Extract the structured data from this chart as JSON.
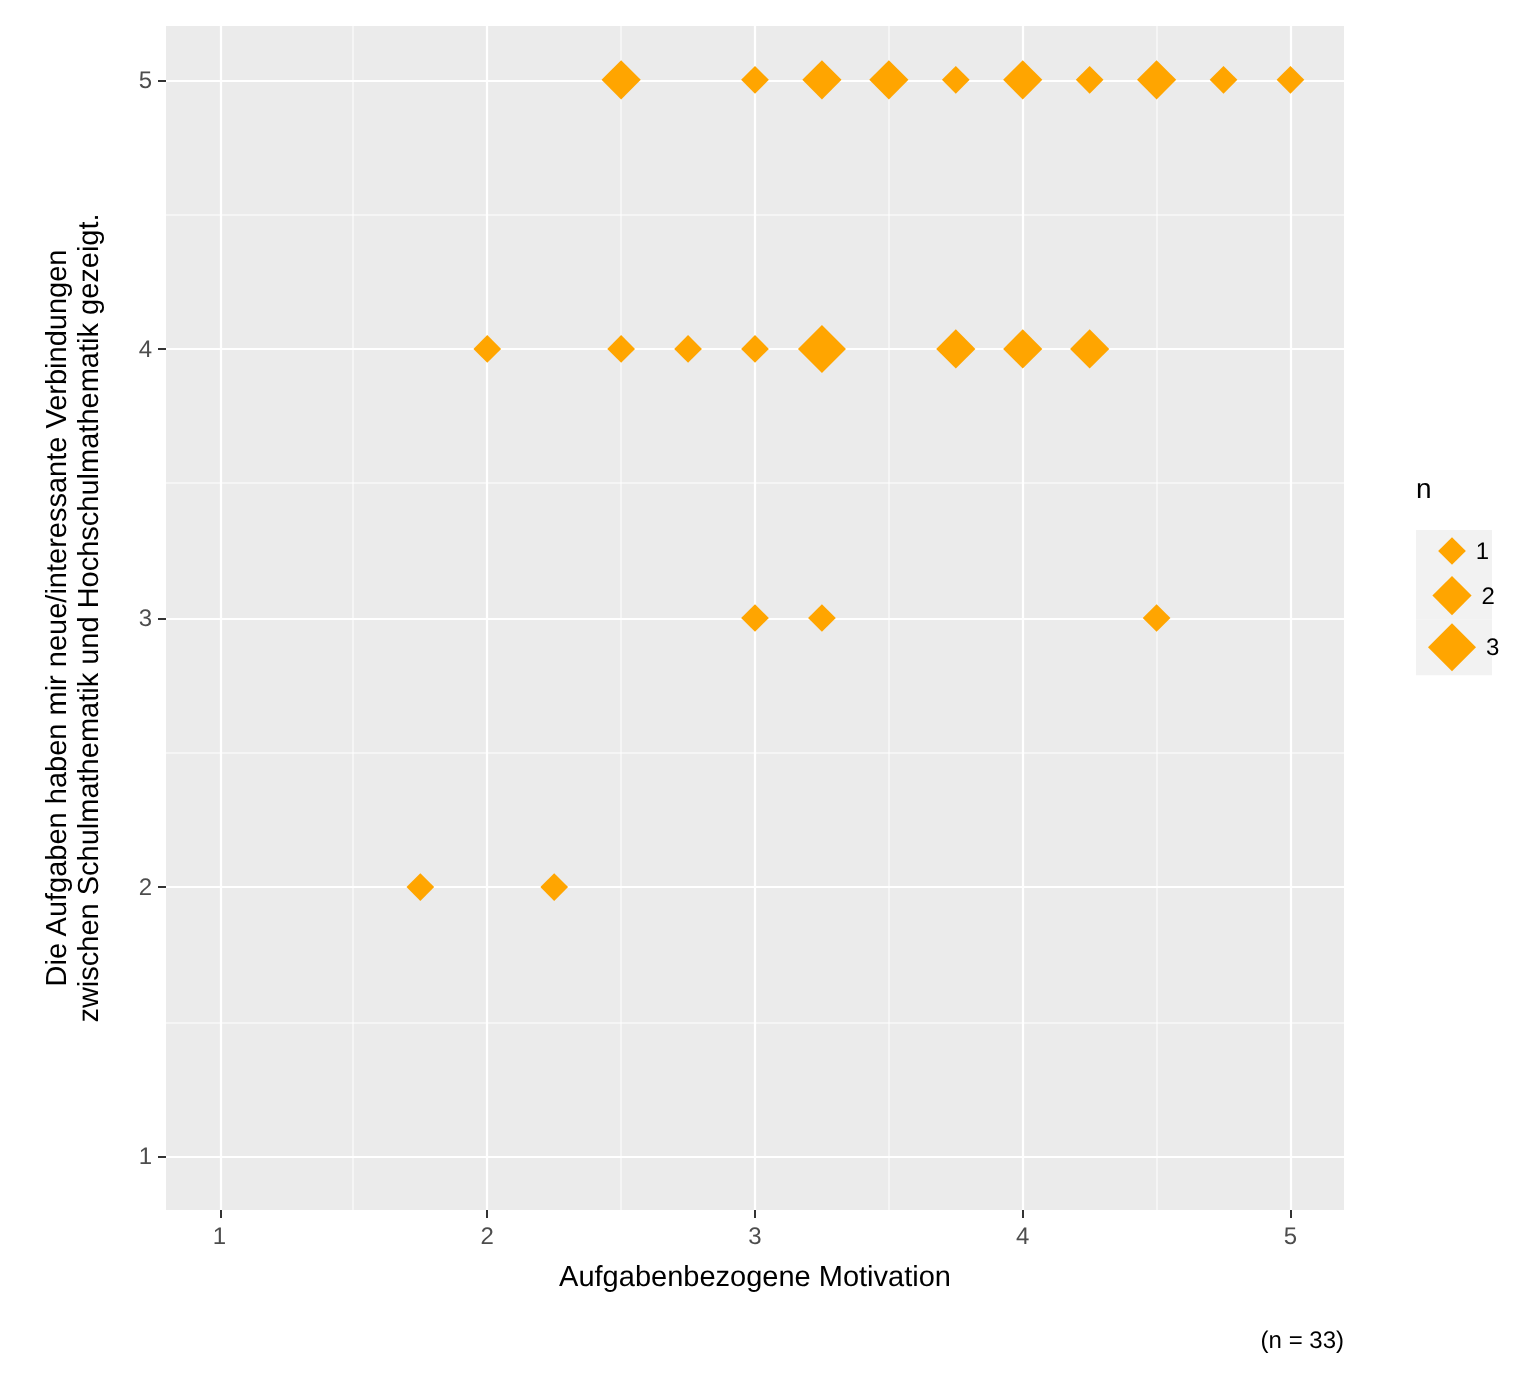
{
  "chart_data": {
    "type": "bubble",
    "xlabel": "Aufgabenbezogene Motivation",
    "ylabel": "Die Aufgaben haben mir neue/interessante Verbindungen\nzwischen Schulmathematik und Hochschulmathematik gezeigt.",
    "legend_title": "n",
    "annotations": [
      "(n = 33)"
    ],
    "x": [
      2.5,
      3,
      3.25,
      3.5,
      3.75,
      4,
      4.25,
      4.5,
      4.75,
      5,
      2,
      2.5,
      2.75,
      3,
      3.25,
      3.75,
      4,
      4.25,
      3,
      3.25,
      4.5,
      1.75,
      2.25
    ],
    "values": [
      5,
      5,
      5,
      5,
      5,
      5,
      5,
      5,
      5,
      5,
      4,
      4,
      4,
      4,
      4,
      4,
      4,
      4,
      3,
      3,
      3,
      2,
      2
    ],
    "sizes": [
      2,
      1,
      2,
      2,
      1,
      2,
      1,
      2,
      1,
      1,
      1,
      1,
      1,
      1,
      3,
      2,
      2,
      2,
      1,
      1,
      1,
      1,
      1
    ],
    "size_legend": [
      1,
      2,
      3
    ],
    "color": "#ffa500",
    "marker": "diamond",
    "xlim": [
      0.8,
      5.2
    ],
    "ylim": [
      0.8,
      5.2
    ],
    "xticks": [
      1,
      2,
      3,
      4,
      5
    ],
    "yticks": [
      1,
      2,
      3,
      4,
      5
    ],
    "grid": true
  }
}
